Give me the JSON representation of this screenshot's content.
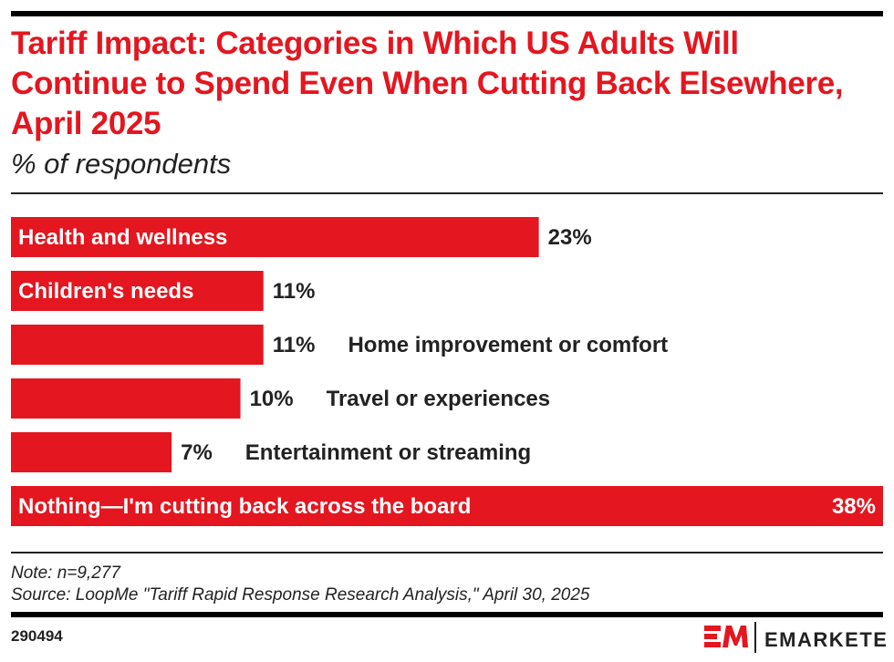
{
  "title": "Tariff Impact: Categories in Which US Adults Will Continue to Spend Even When Cutting Back Elsewhere, April 2025",
  "subtitle": "% of respondents",
  "note": "Note: n=9,277",
  "source": "Source: LoopMe \"Tariff Rapid Response Research Analysis,\" April 30, 2025",
  "chart_id": "290494",
  "brand": "EMARKETER",
  "colors": {
    "bar": "#e4161f",
    "title": "#e4161f",
    "text": "#222222"
  },
  "chart_data": {
    "type": "bar",
    "orientation": "horizontal",
    "categories": [
      "Health and wellness",
      "Children's needs",
      "Home improvement or comfort",
      "Travel or experiences",
      "Entertainment or streaming",
      "Nothing—I'm cutting back across the board"
    ],
    "values": [
      23,
      11,
      11,
      10,
      7,
      38
    ],
    "value_labels": [
      "23%",
      "11%",
      "11%",
      "10%",
      "7%",
      "38%"
    ],
    "xlim": [
      0,
      38
    ],
    "grid": false,
    "legend": "none"
  }
}
